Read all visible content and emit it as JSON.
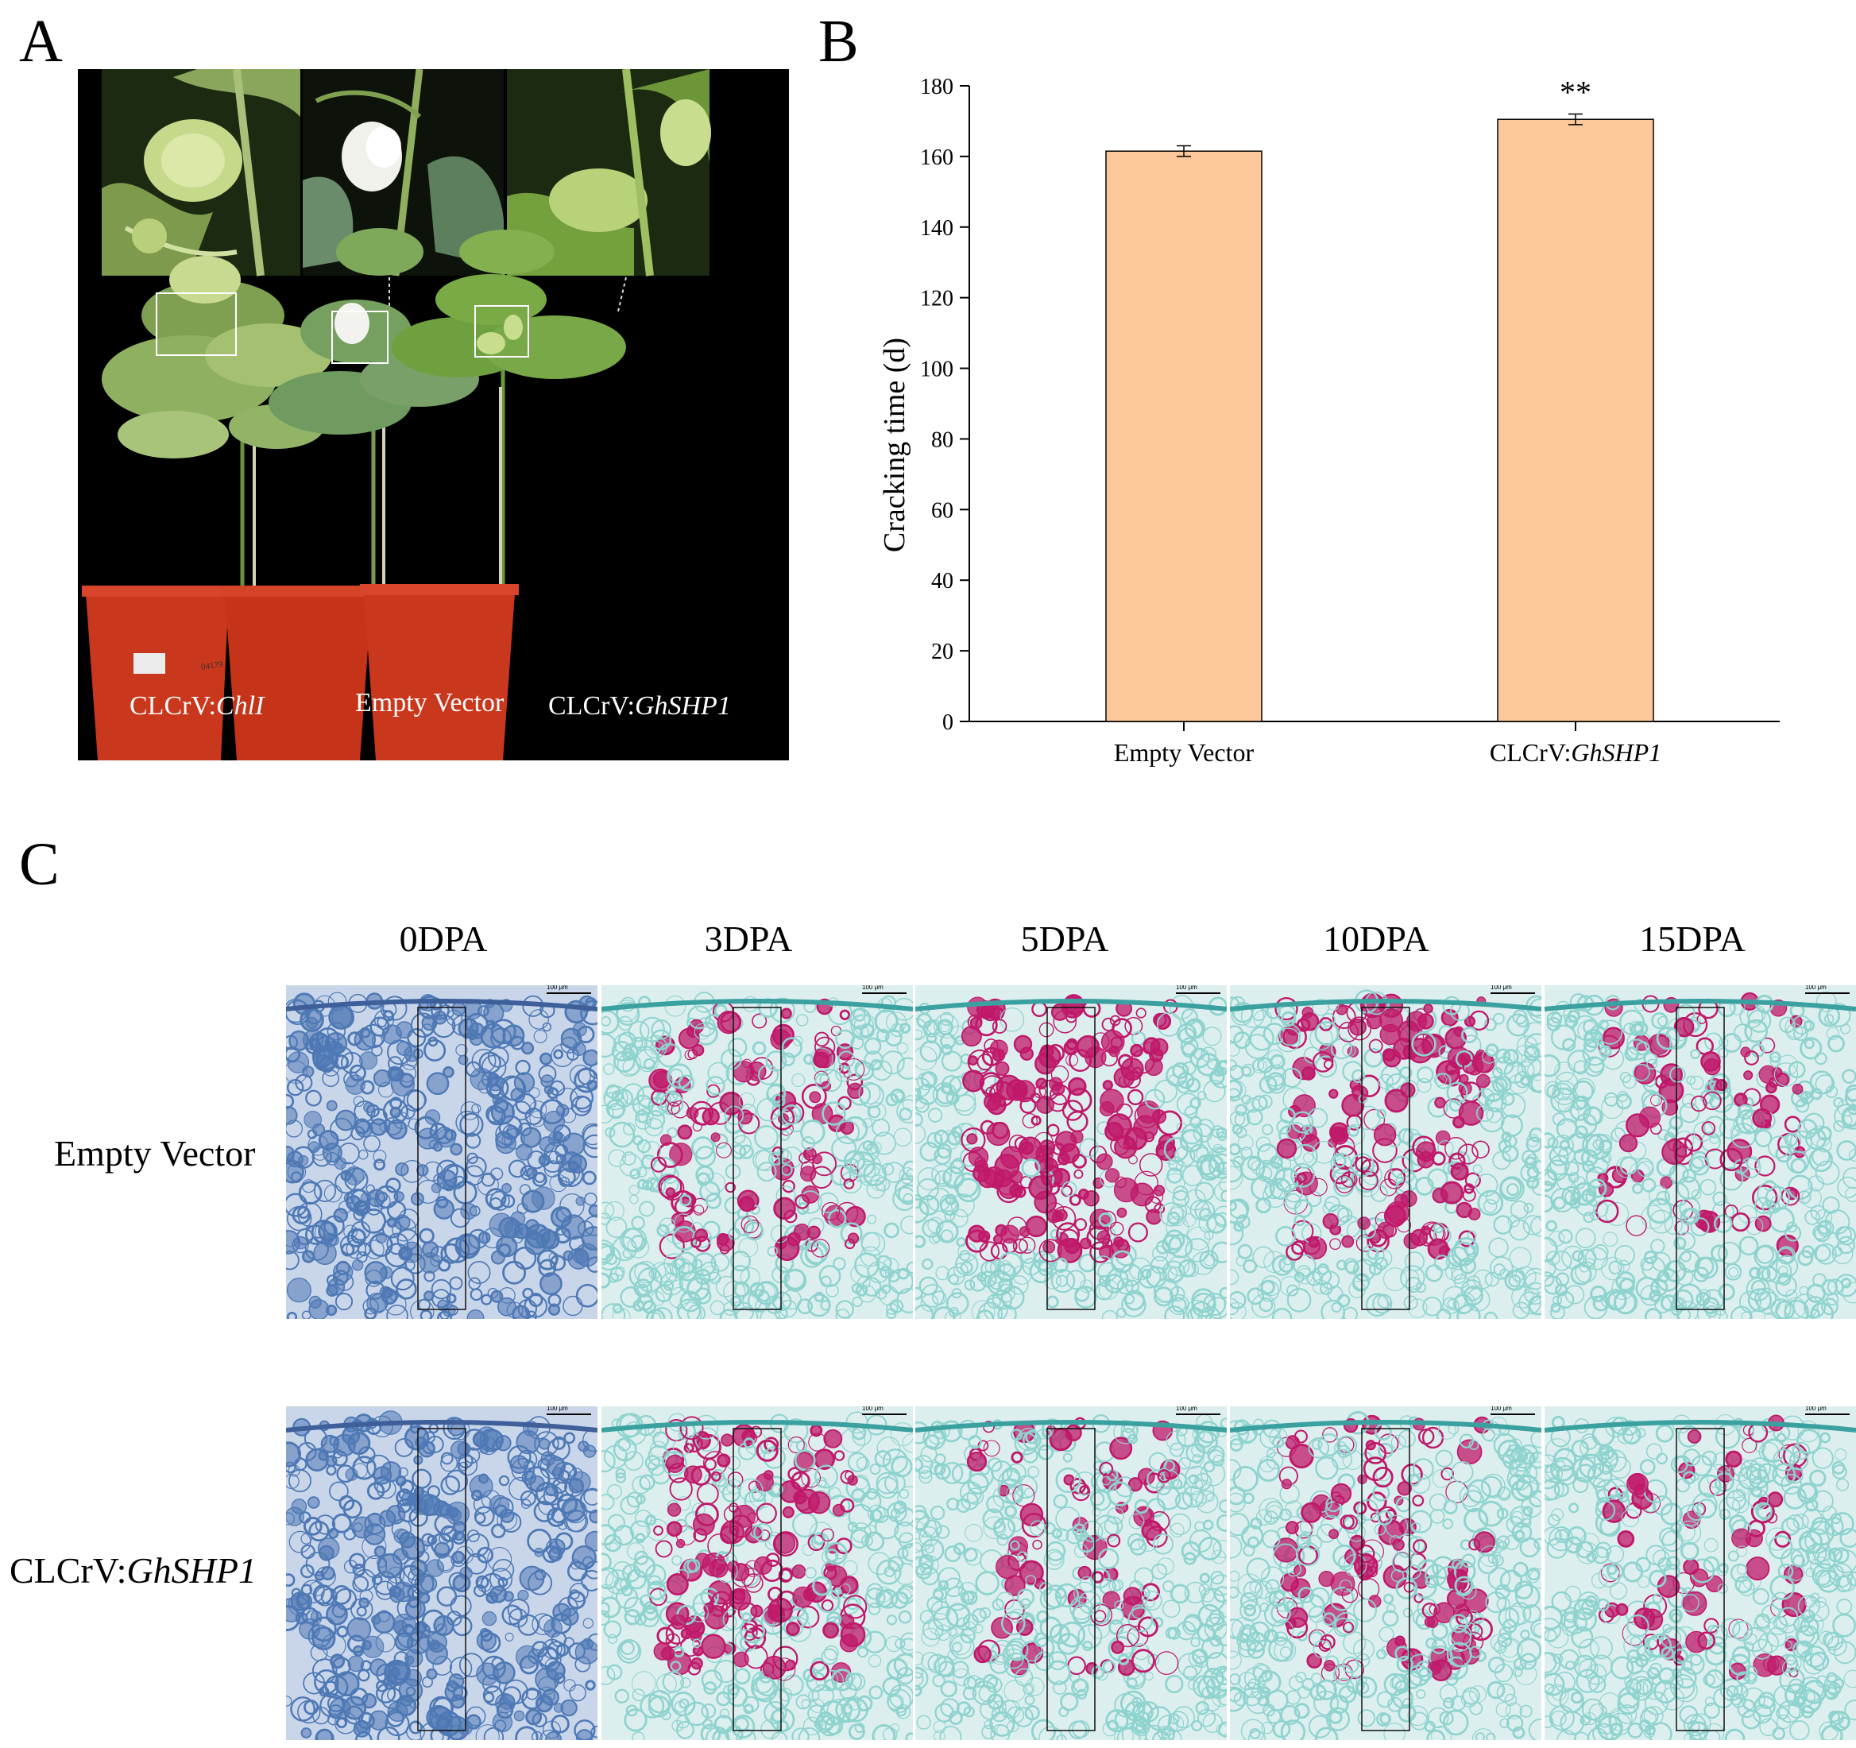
{
  "panelA": {
    "letter": "A",
    "labels": [
      {
        "prefix": "CLCrV:",
        "gene": "ChlI"
      },
      {
        "prefix": "Empty Vector",
        "gene": ""
      },
      {
        "prefix": "CLCrV:",
        "gene": "GhSHP1"
      }
    ],
    "pot_tag_text": "04179"
  },
  "panelB": {
    "letter": "B",
    "significance": "**",
    "x_labels": [
      {
        "prefix": "Empty Vector",
        "gene": ""
      },
      {
        "prefix": "CLCrV:",
        "gene": "GhSHP1"
      }
    ]
  },
  "chart_data": {
    "type": "bar",
    "categories": [
      "Empty Vector",
      "CLCrV:GhSHP1"
    ],
    "values": [
      161.5,
      170.5
    ],
    "errors": [
      1.5,
      1.5
    ],
    "ylabel": "Cracking time (d)",
    "ylim": [
      0,
      180
    ],
    "yticks": [
      0,
      20,
      40,
      60,
      80,
      100,
      120,
      140,
      160,
      180
    ],
    "bar_color": "#FCC89A",
    "annotations": [
      {
        "category": "CLCrV:GhSHP1",
        "text": "**"
      }
    ],
    "grid": false,
    "legend": "none"
  },
  "panelC": {
    "letter": "C",
    "columns": [
      "0DPA",
      "3DPA",
      "5DPA",
      "10DPA",
      "15DPA"
    ],
    "rows": [
      {
        "prefix": "Empty Vector",
        "gene": ""
      },
      {
        "prefix": "CLCrV:",
        "gene": "GhSHP1"
      }
    ],
    "scale_bar_label": "100 μm"
  },
  "colors": {
    "stain_blue": "#4E79B5",
    "stain_teal": "#8FD3CF",
    "stain_magenta": "#C0186A",
    "pot": "#C9371C",
    "leaf": "#7FA050"
  }
}
